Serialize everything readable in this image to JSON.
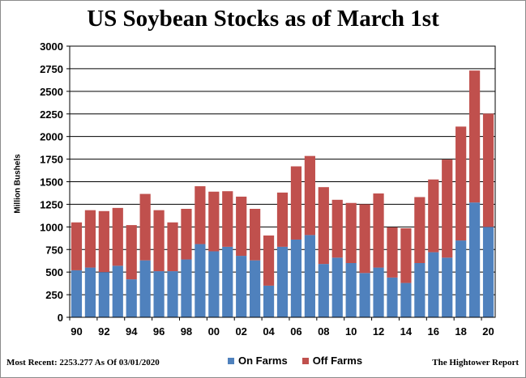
{
  "chart_data": {
    "type": "bar",
    "stacked": true,
    "title": "US Soybean Stocks as of March 1st",
    "xlabel": "",
    "ylabel": "Million Bushels",
    "ylim": [
      0,
      3000
    ],
    "yticks": [
      0,
      250,
      500,
      750,
      1000,
      1250,
      1500,
      1750,
      2000,
      2250,
      2500,
      2750,
      3000
    ],
    "grid": true,
    "legend_position": "bottom",
    "x_tick_labels": [
      "90",
      "92",
      "94",
      "96",
      "98",
      "00",
      "02",
      "04",
      "06",
      "08",
      "10",
      "12",
      "14",
      "16",
      "18",
      "20"
    ],
    "categories": [
      "1990",
      "1991",
      "1992",
      "1993",
      "1994",
      "1995",
      "1996",
      "1997",
      "1998",
      "1999",
      "2000",
      "2001",
      "2002",
      "2003",
      "2004",
      "2005",
      "2006",
      "2007",
      "2008",
      "2009",
      "2010",
      "2011",
      "2012",
      "2013",
      "2014",
      "2015",
      "2016",
      "2017",
      "2018",
      "2019",
      "2020"
    ],
    "series": [
      {
        "name": "On Farms",
        "color": "#4f81bd",
        "values": [
          520,
          550,
          500,
          570,
          420,
          630,
          510,
          510,
          640,
          810,
          730,
          780,
          680,
          630,
          350,
          780,
          860,
          910,
          590,
          660,
          600,
          490,
          550,
          440,
          380,
          600,
          720,
          660,
          850,
          1270,
          1000
        ]
      },
      {
        "name": "Off Farms",
        "color": "#c0504d",
        "values": [
          530,
          635,
          675,
          640,
          600,
          735,
          675,
          540,
          560,
          640,
          660,
          615,
          655,
          570,
          555,
          600,
          810,
          875,
          850,
          640,
          665,
          760,
          820,
          555,
          605,
          730,
          805,
          1085,
          1260,
          1460,
          1253
        ]
      }
    ]
  },
  "footer": {
    "most_recent": "Most Recent: 2253.277  As Of 03/01/2020",
    "source": "The Hightower Report"
  }
}
